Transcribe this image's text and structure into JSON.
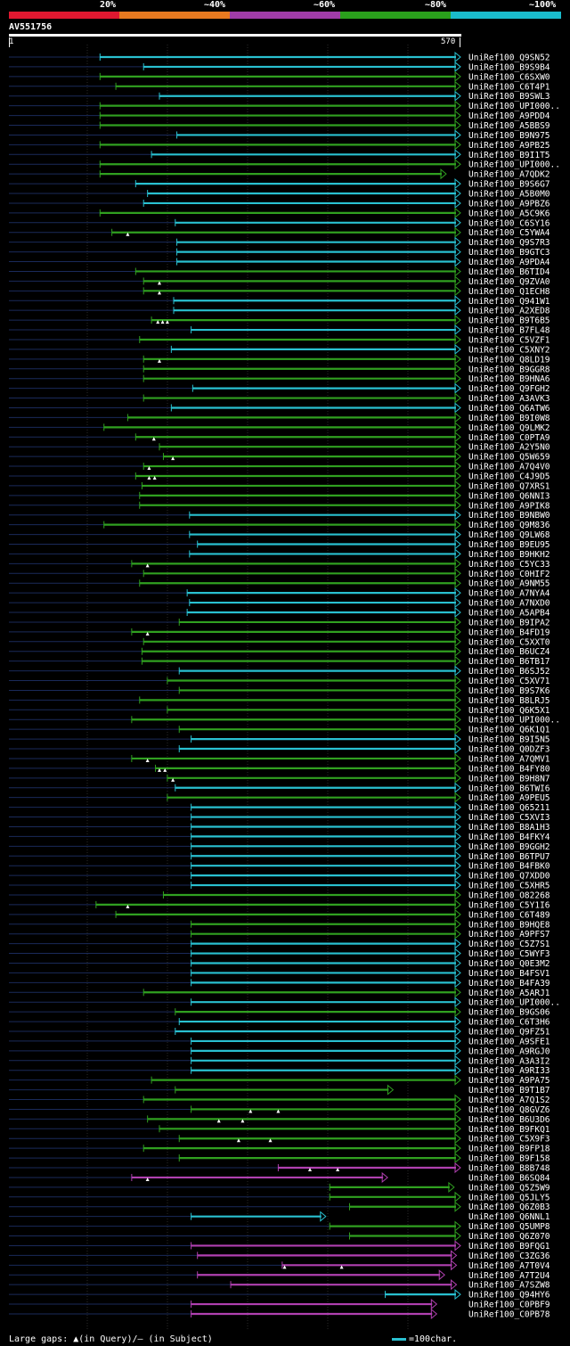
{
  "legend": {
    "colors": [
      "#e01830",
      "#e87a20",
      "#a03ca8",
      "#2aa01c",
      "#1abccc"
    ],
    "labels": [
      "20%",
      "~40%",
      "~60%",
      "~80%",
      "~100%"
    ]
  },
  "query": {
    "name": "AV551756",
    "start": "1",
    "end": "570",
    "length": 570
  },
  "footer": {
    "gaps_text": "Large gaps: ▲(in Query)/– (in Subject)",
    "scale_text": "=100char."
  },
  "chart_data": {
    "type": "alignment",
    "color_key": {
      "c": "#29c0d0",
      "g": "#30a020",
      "m": "#b040b0"
    },
    "hits": [
      {
        "name": "UniRef100_Q9SN52",
        "start": 115,
        "end": 570,
        "color": "c",
        "gaps": []
      },
      {
        "name": "UniRef100_B9S9B4",
        "start": 170,
        "end": 570,
        "color": "c",
        "gaps": []
      },
      {
        "name": "UniRef100_C6SXW0",
        "start": 115,
        "end": 570,
        "color": "g",
        "gaps": []
      },
      {
        "name": "UniRef100_C6T4P1",
        "start": 135,
        "end": 570,
        "color": "g",
        "gaps": []
      },
      {
        "name": "UniRef100_B9SWL3",
        "start": 190,
        "end": 570,
        "color": "c",
        "gaps": []
      },
      {
        "name": "UniRef100_UPI000..",
        "start": 115,
        "end": 570,
        "color": "g",
        "gaps": []
      },
      {
        "name": "UniRef100_A9PDD4",
        "start": 115,
        "end": 570,
        "color": "g",
        "gaps": []
      },
      {
        "name": "UniRef100_A5BBS9",
        "start": 115,
        "end": 570,
        "color": "g",
        "gaps": []
      },
      {
        "name": "UniRef100_B9N975",
        "start": 212,
        "end": 570,
        "color": "c",
        "gaps": []
      },
      {
        "name": "UniRef100_A9PB25",
        "start": 115,
        "end": 570,
        "color": "g",
        "gaps": []
      },
      {
        "name": "UniRef100_B9I1T5",
        "start": 180,
        "end": 570,
        "color": "c",
        "gaps": []
      },
      {
        "name": "UniRef100_UPI000..",
        "start": 115,
        "end": 570,
        "color": "g",
        "gaps": []
      },
      {
        "name": "UniRef100_A7QDK2",
        "start": 115,
        "end": 552,
        "color": "g",
        "gaps": []
      },
      {
        "name": "UniRef100_B9S6G7",
        "start": 160,
        "end": 570,
        "color": "c",
        "gaps": []
      },
      {
        "name": "UniRef100_A5B0M0",
        "start": 175,
        "end": 570,
        "color": "c",
        "gaps": []
      },
      {
        "name": "UniRef100_A9PBZ6",
        "start": 170,
        "end": 570,
        "color": "c",
        "gaps": []
      },
      {
        "name": "UniRef100_A5C9K6",
        "start": 115,
        "end": 570,
        "color": "g",
        "gaps": []
      },
      {
        "name": "UniRef100_C6SY16",
        "start": 210,
        "end": 570,
        "color": "c",
        "gaps": []
      },
      {
        "name": "UniRef100_C5YWA4",
        "start": 130,
        "end": 570,
        "color": "g",
        "gaps": [
          150
        ]
      },
      {
        "name": "UniRef100_Q9S7R3",
        "start": 212,
        "end": 570,
        "color": "c",
        "gaps": []
      },
      {
        "name": "UniRef100_B9GTC3",
        "start": 212,
        "end": 570,
        "color": "c",
        "gaps": []
      },
      {
        "name": "UniRef100_A9PDA4",
        "start": 212,
        "end": 570,
        "color": "c",
        "gaps": []
      },
      {
        "name": "UniRef100_B6TID4",
        "start": 160,
        "end": 570,
        "color": "g",
        "gaps": []
      },
      {
        "name": "UniRef100_Q9ZVA0",
        "start": 170,
        "end": 570,
        "color": "g",
        "gaps": [
          190
        ]
      },
      {
        "name": "UniRef100_Q1ECH8",
        "start": 170,
        "end": 570,
        "color": "g",
        "gaps": [
          190
        ]
      },
      {
        "name": "UniRef100_Q941W1",
        "start": 208,
        "end": 570,
        "color": "c",
        "gaps": []
      },
      {
        "name": "UniRef100_A2XED8",
        "start": 208,
        "end": 570,
        "color": "c",
        "gaps": []
      },
      {
        "name": "UniRef100_B9T6B5",
        "start": 180,
        "end": 570,
        "color": "g",
        "gaps": [
          188,
          194,
          200
        ]
      },
      {
        "name": "UniRef100_B7FL48",
        "start": 230,
        "end": 570,
        "color": "c",
        "gaps": []
      },
      {
        "name": "UniRef100_C5VZF1",
        "start": 165,
        "end": 570,
        "color": "g",
        "gaps": []
      },
      {
        "name": "UniRef100_C5XNY2",
        "start": 205,
        "end": 570,
        "color": "c",
        "gaps": []
      },
      {
        "name": "UniRef100_Q8LD19",
        "start": 170,
        "end": 570,
        "color": "g",
        "gaps": [
          190
        ]
      },
      {
        "name": "UniRef100_B9GGR8",
        "start": 170,
        "end": 570,
        "color": "g",
        "gaps": []
      },
      {
        "name": "UniRef100_B9HNA6",
        "start": 170,
        "end": 570,
        "color": "g",
        "gaps": []
      },
      {
        "name": "UniRef100_Q9FGH2",
        "start": 232,
        "end": 570,
        "color": "c",
        "gaps": []
      },
      {
        "name": "UniRef100_A3AVK3",
        "start": 170,
        "end": 570,
        "color": "g",
        "gaps": []
      },
      {
        "name": "UniRef100_Q6ATW6",
        "start": 205,
        "end": 570,
        "color": "c",
        "gaps": []
      },
      {
        "name": "UniRef100_B9I0W8",
        "start": 150,
        "end": 570,
        "color": "g",
        "gaps": []
      },
      {
        "name": "UniRef100_Q9LMK2",
        "start": 120,
        "end": 570,
        "color": "g",
        "gaps": []
      },
      {
        "name": "UniRef100_C0PTA9",
        "start": 160,
        "end": 570,
        "color": "g",
        "gaps": [
          183
        ]
      },
      {
        "name": "UniRef100_A2Y5N0",
        "start": 190,
        "end": 570,
        "color": "g",
        "gaps": []
      },
      {
        "name": "UniRef100_Q5W659",
        "start": 195,
        "end": 570,
        "color": "g",
        "gaps": [
          207
        ]
      },
      {
        "name": "UniRef100_A7Q4V0",
        "start": 170,
        "end": 570,
        "color": "g",
        "gaps": [
          177
        ]
      },
      {
        "name": "UniRef100_C4J9D5",
        "start": 160,
        "end": 570,
        "color": "g",
        "gaps": [
          177,
          184
        ]
      },
      {
        "name": "UniRef100_Q7XRS1",
        "start": 168,
        "end": 570,
        "color": "g",
        "gaps": []
      },
      {
        "name": "UniRef100_Q6NNI3",
        "start": 165,
        "end": 570,
        "color": "g",
        "gaps": []
      },
      {
        "name": "UniRef100_A9PIK8",
        "start": 165,
        "end": 570,
        "color": "g",
        "gaps": []
      },
      {
        "name": "UniRef100_B9NBW0",
        "start": 228,
        "end": 570,
        "color": "c",
        "gaps": []
      },
      {
        "name": "UniRef100_Q9M836",
        "start": 120,
        "end": 570,
        "color": "g",
        "gaps": []
      },
      {
        "name": "UniRef100_Q9LW68",
        "start": 228,
        "end": 570,
        "color": "c",
        "gaps": []
      },
      {
        "name": "UniRef100_B9EU95",
        "start": 238,
        "end": 570,
        "color": "c",
        "gaps": []
      },
      {
        "name": "UniRef100_B9HKH2",
        "start": 228,
        "end": 570,
        "color": "c",
        "gaps": []
      },
      {
        "name": "UniRef100_C5YC33",
        "start": 155,
        "end": 570,
        "color": "g",
        "gaps": [
          175
        ]
      },
      {
        "name": "UniRef100_C0HIF2",
        "start": 170,
        "end": 570,
        "color": "g",
        "gaps": []
      },
      {
        "name": "UniRef100_A9NM55",
        "start": 165,
        "end": 570,
        "color": "g",
        "gaps": []
      },
      {
        "name": "UniRef100_A7NYA4",
        "start": 225,
        "end": 570,
        "color": "c",
        "gaps": []
      },
      {
        "name": "UniRef100_A7NXD0",
        "start": 228,
        "end": 570,
        "color": "c",
        "gaps": []
      },
      {
        "name": "UniRef100_A5APB4",
        "start": 225,
        "end": 570,
        "color": "c",
        "gaps": []
      },
      {
        "name": "UniRef100_B9IPA2",
        "start": 215,
        "end": 570,
        "color": "g",
        "gaps": []
      },
      {
        "name": "UniRef100_B4FD19",
        "start": 155,
        "end": 570,
        "color": "g",
        "gaps": [
          175
        ]
      },
      {
        "name": "UniRef100_C5XXT0",
        "start": 170,
        "end": 570,
        "color": "g",
        "gaps": []
      },
      {
        "name": "UniRef100_B6UCZ4",
        "start": 168,
        "end": 570,
        "color": "g",
        "gaps": []
      },
      {
        "name": "UniRef100_B6TB17",
        "start": 168,
        "end": 570,
        "color": "g",
        "gaps": []
      },
      {
        "name": "UniRef100_B6SJ52",
        "start": 215,
        "end": 570,
        "color": "c",
        "gaps": []
      },
      {
        "name": "UniRef100_C5XV71",
        "start": 200,
        "end": 570,
        "color": "g",
        "gaps": []
      },
      {
        "name": "UniRef100_B9S7K6",
        "start": 215,
        "end": 570,
        "color": "g",
        "gaps": []
      },
      {
        "name": "UniRef100_B8LRJ5",
        "start": 165,
        "end": 570,
        "color": "g",
        "gaps": []
      },
      {
        "name": "UniRef100_Q6K5X1",
        "start": 200,
        "end": 570,
        "color": "g",
        "gaps": []
      },
      {
        "name": "UniRef100_UPI000..",
        "start": 155,
        "end": 570,
        "color": "g",
        "gaps": []
      },
      {
        "name": "UniRef100_Q6K1Q1",
        "start": 215,
        "end": 570,
        "color": "g",
        "gaps": []
      },
      {
        "name": "UniRef100_B9I5N5",
        "start": 230,
        "end": 570,
        "color": "c",
        "gaps": []
      },
      {
        "name": "UniRef100_Q0DZF3",
        "start": 215,
        "end": 570,
        "color": "c",
        "gaps": []
      },
      {
        "name": "UniRef100_A7QMV1",
        "start": 155,
        "end": 570,
        "color": "g",
        "gaps": [
          175
        ]
      },
      {
        "name": "UniRef100_B4FY80",
        "start": 185,
        "end": 570,
        "color": "g",
        "gaps": [
          190,
          197
        ]
      },
      {
        "name": "UniRef100_B9H8N7",
        "start": 200,
        "end": 570,
        "color": "g",
        "gaps": [
          207
        ]
      },
      {
        "name": "UniRef100_B6TWI6",
        "start": 210,
        "end": 570,
        "color": "c",
        "gaps": []
      },
      {
        "name": "UniRef100_A9PEU5",
        "start": 200,
        "end": 570,
        "color": "g",
        "gaps": []
      },
      {
        "name": "UniRef100_Q65211",
        "start": 230,
        "end": 570,
        "color": "c",
        "gaps": []
      },
      {
        "name": "UniRef100_C5XVI3",
        "start": 230,
        "end": 570,
        "color": "c",
        "gaps": []
      },
      {
        "name": "UniRef100_B8A1H3",
        "start": 230,
        "end": 570,
        "color": "c",
        "gaps": []
      },
      {
        "name": "UniRef100_B4FKY4",
        "start": 230,
        "end": 570,
        "color": "c",
        "gaps": []
      },
      {
        "name": "UniRef100_B9GGH2",
        "start": 230,
        "end": 570,
        "color": "c",
        "gaps": []
      },
      {
        "name": "UniRef100_B6TPU7",
        "start": 230,
        "end": 570,
        "color": "c",
        "gaps": []
      },
      {
        "name": "UniRef100_B4FBK0",
        "start": 230,
        "end": 570,
        "color": "c",
        "gaps": []
      },
      {
        "name": "UniRef100_Q7XDD0",
        "start": 230,
        "end": 570,
        "color": "c",
        "gaps": []
      },
      {
        "name": "UniRef100_C5XHR5",
        "start": 230,
        "end": 570,
        "color": "c",
        "gaps": []
      },
      {
        "name": "UniRef100_O82268",
        "start": 195,
        "end": 570,
        "color": "g",
        "gaps": []
      },
      {
        "name": "UniRef100_C5Y1I6",
        "start": 110,
        "end": 570,
        "color": "g",
        "gaps": [
          150
        ]
      },
      {
        "name": "UniRef100_C6T489",
        "start": 135,
        "end": 570,
        "color": "g",
        "gaps": []
      },
      {
        "name": "UniRef100_B9HQE8",
        "start": 230,
        "end": 570,
        "color": "g",
        "gaps": []
      },
      {
        "name": "UniRef100_A9PFS7",
        "start": 230,
        "end": 570,
        "color": "g",
        "gaps": []
      },
      {
        "name": "UniRef100_C5Z7S1",
        "start": 230,
        "end": 570,
        "color": "c",
        "gaps": []
      },
      {
        "name": "UniRef100_C5WYF3",
        "start": 230,
        "end": 570,
        "color": "c",
        "gaps": []
      },
      {
        "name": "UniRef100_Q0E3M2",
        "start": 230,
        "end": 570,
        "color": "c",
        "gaps": []
      },
      {
        "name": "UniRef100_B4FSV1",
        "start": 230,
        "end": 570,
        "color": "c",
        "gaps": []
      },
      {
        "name": "UniRef100_B4FA39",
        "start": 230,
        "end": 570,
        "color": "c",
        "gaps": []
      },
      {
        "name": "UniRef100_A5ARJ1",
        "start": 170,
        "end": 570,
        "color": "g",
        "gaps": []
      },
      {
        "name": "UniRef100_UPI000..",
        "start": 230,
        "end": 570,
        "color": "c",
        "gaps": []
      },
      {
        "name": "UniRef100_B9GS06",
        "start": 210,
        "end": 570,
        "color": "g",
        "gaps": []
      },
      {
        "name": "UniRef100_C6T3H6",
        "start": 215,
        "end": 570,
        "color": "c",
        "gaps": []
      },
      {
        "name": "UniRef100_Q9FZ51",
        "start": 210,
        "end": 570,
        "color": "c",
        "gaps": []
      },
      {
        "name": "UniRef100_A9SFE1",
        "start": 230,
        "end": 570,
        "color": "c",
        "gaps": []
      },
      {
        "name": "UniRef100_A9RGJ0",
        "start": 230,
        "end": 570,
        "color": "c",
        "gaps": []
      },
      {
        "name": "UniRef100_A3A3I2",
        "start": 230,
        "end": 570,
        "color": "c",
        "gaps": []
      },
      {
        "name": "UniRef100_A9RI33",
        "start": 230,
        "end": 570,
        "color": "c",
        "gaps": []
      },
      {
        "name": "UniRef100_A9PA75",
        "start": 180,
        "end": 570,
        "color": "g",
        "gaps": []
      },
      {
        "name": "UniRef100_B9T1B7",
        "start": 210,
        "end": 485,
        "color": "g",
        "gaps": []
      },
      {
        "name": "UniRef100_A7Q1S2",
        "start": 170,
        "end": 570,
        "color": "g",
        "gaps": []
      },
      {
        "name": "UniRef100_Q8GVZ6",
        "start": 230,
        "end": 570,
        "color": "g",
        "gaps": [
          305,
          340
        ]
      },
      {
        "name": "UniRef100_B6U3D6",
        "start": 175,
        "end": 570,
        "color": "g",
        "gaps": [
          265,
          295
        ]
      },
      {
        "name": "UniRef100_B9FKQ1",
        "start": 190,
        "end": 570,
        "color": "g",
        "gaps": []
      },
      {
        "name": "UniRef100_C5X9F3",
        "start": 215,
        "end": 570,
        "color": "g",
        "gaps": [
          290,
          330
        ]
      },
      {
        "name": "UniRef100_B9FP18",
        "start": 170,
        "end": 570,
        "color": "g",
        "gaps": []
      },
      {
        "name": "UniRef100_B9F158",
        "start": 215,
        "end": 570,
        "color": "g",
        "gaps": []
      },
      {
        "name": "UniRef100_B8B748",
        "start": 340,
        "end": 570,
        "color": "m",
        "gaps": [
          380,
          415
        ]
      },
      {
        "name": "UniRef100_B6SQ84",
        "start": 155,
        "end": 478,
        "color": "m",
        "gaps": [
          175
        ]
      },
      {
        "name": "UniRef100_Q5Z5W9",
        "start": 405,
        "end": 562,
        "color": "g",
        "gaps": []
      },
      {
        "name": "UniRef100_Q5JLY5",
        "start": 405,
        "end": 570,
        "color": "g",
        "gaps": []
      },
      {
        "name": "UniRef100_Q6Z0B3",
        "start": 430,
        "end": 570,
        "color": "g",
        "gaps": []
      },
      {
        "name": "UniRef100_Q6NNL1",
        "start": 230,
        "end": 400,
        "color": "c",
        "gaps": []
      },
      {
        "name": "UniRef100_Q5UMP8",
        "start": 405,
        "end": 570,
        "color": "g",
        "gaps": []
      },
      {
        "name": "UniRef100_Q6Z070",
        "start": 430,
        "end": 570,
        "color": "g",
        "gaps": []
      },
      {
        "name": "UniRef100_B9FQG1",
        "start": 230,
        "end": 570,
        "color": "m",
        "gaps": []
      },
      {
        "name": "UniRef100_C3ZG36",
        "start": 238,
        "end": 565,
        "color": "m",
        "gaps": []
      },
      {
        "name": "UniRef100_A7T0V4",
        "start": 345,
        "end": 565,
        "color": "m",
        "gaps": [
          348,
          420
        ]
      },
      {
        "name": "UniRef100_A7T2U4",
        "start": 238,
        "end": 550,
        "color": "m",
        "gaps": []
      },
      {
        "name": "UniRef100_A7SZW8",
        "start": 280,
        "end": 565,
        "color": "m",
        "gaps": []
      },
      {
        "name": "UniRef100_Q94HY6",
        "start": 475,
        "end": 595,
        "color": "c",
        "gaps": []
      },
      {
        "name": "UniRef100_C0PBF9",
        "start": 230,
        "end": 540,
        "color": "m",
        "gaps": []
      },
      {
        "name": "UniRef100_C0PB78",
        "start": 230,
        "end": 540,
        "color": "m",
        "gaps": []
      }
    ]
  }
}
